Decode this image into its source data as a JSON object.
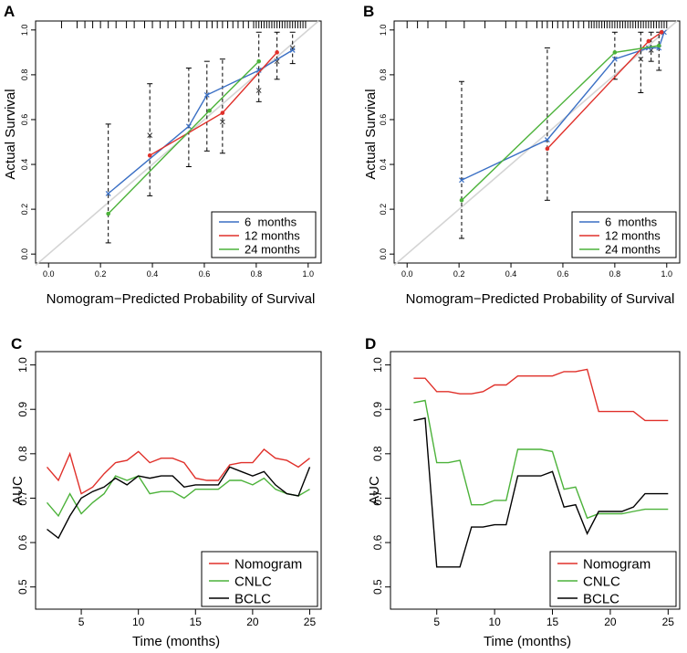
{
  "chart_data": [
    {
      "panel": "A",
      "type": "line",
      "subtype": "calibration",
      "xlabel": "Nomogram−Predicted Probability of Survival",
      "ylabel": "Actual Survival",
      "xlim": [
        -0.05,
        1.05
      ],
      "ylim": [
        -0.04,
        1.04
      ],
      "xticks": [
        "0.0",
        "0.2",
        "0.4",
        "0.6",
        "0.8",
        "1.0"
      ],
      "yticks": [
        "0.0",
        "0.2",
        "0.4",
        "0.6",
        "0.8",
        "1.0"
      ],
      "xtick_values": [
        0,
        0.2,
        0.4,
        0.6,
        0.8,
        1.0
      ],
      "ytick_values": [
        0,
        0.2,
        0.4,
        0.6,
        0.8,
        1.0
      ],
      "reference_line": true,
      "legend_position": "bottom-right",
      "rug": [
        0.05,
        0.11,
        0.14,
        0.17,
        0.2,
        0.23,
        0.26,
        0.3,
        0.33,
        0.37,
        0.4,
        0.43,
        0.46,
        0.49,
        0.52,
        0.55,
        0.58,
        0.61,
        0.63,
        0.65,
        0.67,
        0.69,
        0.71,
        0.73,
        0.75,
        0.77,
        0.79,
        0.8,
        0.81,
        0.82,
        0.83,
        0.84,
        0.85,
        0.86,
        0.87,
        0.88,
        0.89,
        0.9,
        0.91,
        0.92,
        0.93,
        0.94,
        0.95,
        0.96,
        0.97,
        0.98,
        0.99
      ],
      "series": [
        {
          "name": "6  months",
          "color": "#3a6fc4",
          "x": [
            0.23,
            0.54,
            0.61,
            0.81,
            0.94
          ],
          "y": [
            0.27,
            0.57,
            0.71,
            0.82,
            0.91
          ],
          "marker": "x"
        },
        {
          "name": "12 months",
          "color": "#e0302a",
          "x": [
            0.39,
            0.67,
            0.88
          ],
          "y": [
            0.44,
            0.63,
            0.9
          ],
          "marker": "dot"
        },
        {
          "name": "24 months",
          "color": "#4cb23a",
          "x": [
            0.23,
            0.62,
            0.81
          ],
          "y": [
            0.18,
            0.64,
            0.86
          ],
          "marker": "dot"
        }
      ],
      "error_bars": [
        {
          "x": 0.23,
          "lo": 0.05,
          "hi": 0.58
        },
        {
          "x": 0.39,
          "lo": 0.26,
          "hi": 0.76
        },
        {
          "x": 0.54,
          "lo": 0.39,
          "hi": 0.83
        },
        {
          "x": 0.61,
          "lo": 0.46,
          "hi": 0.86
        },
        {
          "x": 0.67,
          "lo": 0.45,
          "hi": 0.87
        },
        {
          "x": 0.81,
          "lo": 0.68,
          "hi": 0.99
        },
        {
          "x": 0.88,
          "lo": 0.78,
          "hi": 0.99
        },
        {
          "x": 0.94,
          "lo": 0.85,
          "hi": 0.99
        }
      ],
      "extra_points": [
        {
          "x": 0.39,
          "y": 0.53
        },
        {
          "x": 0.67,
          "y": 0.59
        },
        {
          "x": 0.81,
          "y": 0.73
        },
        {
          "x": 0.88,
          "y": 0.86
        },
        {
          "x": 0.94,
          "y": 0.92
        }
      ]
    },
    {
      "panel": "B",
      "type": "line",
      "subtype": "calibration",
      "xlabel": "Nomogram−Predicted Probability of Survival",
      "ylabel": "Actual Survival",
      "xlim": [
        -0.05,
        1.05
      ],
      "ylim": [
        -0.04,
        1.04
      ],
      "xticks": [
        "0.0",
        "0.2",
        "0.4",
        "0.6",
        "0.8",
        "1.0"
      ],
      "yticks": [
        "0.0",
        "0.2",
        "0.4",
        "0.6",
        "0.8",
        "1.0"
      ],
      "xtick_values": [
        0,
        0.2,
        0.4,
        0.6,
        0.8,
        1.0
      ],
      "ytick_values": [
        0,
        0.2,
        0.4,
        0.6,
        0.8,
        1.0
      ],
      "reference_line": true,
      "legend_position": "bottom-right",
      "rug": [
        0.0,
        0.04,
        0.08,
        0.15,
        0.22,
        0.3,
        0.38,
        0.42,
        0.46,
        0.5,
        0.52,
        0.54,
        0.56,
        0.58,
        0.6,
        0.62,
        0.64,
        0.66,
        0.68,
        0.7,
        0.71,
        0.72,
        0.73,
        0.74,
        0.75,
        0.76,
        0.77,
        0.78,
        0.79,
        0.8,
        0.81,
        0.82,
        0.83,
        0.84,
        0.85,
        0.86,
        0.87,
        0.88,
        0.89,
        0.9,
        0.91,
        0.92,
        0.93,
        0.94,
        0.95,
        0.96,
        0.97,
        0.98,
        0.99,
        1.0
      ],
      "series": [
        {
          "name": "6  months",
          "color": "#3a6fc4",
          "x": [
            0.21,
            0.54,
            0.8,
            0.93,
            0.97,
            0.99
          ],
          "y": [
            0.33,
            0.51,
            0.87,
            0.92,
            0.92,
            0.99
          ],
          "marker": "x"
        },
        {
          "name": "12 months",
          "color": "#e0302a",
          "x": [
            0.54,
            0.93,
            0.98
          ],
          "y": [
            0.47,
            0.95,
            0.99
          ],
          "marker": "dot"
        },
        {
          "name": "24 months",
          "color": "#4cb23a",
          "x": [
            0.21,
            0.8,
            0.97
          ],
          "y": [
            0.24,
            0.9,
            0.93
          ],
          "marker": "dot"
        }
      ],
      "error_bars": [
        {
          "x": 0.21,
          "lo": 0.07,
          "hi": 0.77
        },
        {
          "x": 0.54,
          "lo": 0.24,
          "hi": 0.92
        },
        {
          "x": 0.8,
          "lo": 0.78,
          "hi": 0.99
        },
        {
          "x": 0.9,
          "lo": 0.72,
          "hi": 0.99
        },
        {
          "x": 0.94,
          "lo": 0.86,
          "hi": 0.99
        },
        {
          "x": 0.97,
          "lo": 0.82,
          "hi": 0.99
        }
      ],
      "extra_points": [
        {
          "x": 0.9,
          "y": 0.87
        },
        {
          "x": 0.94,
          "y": 0.91
        }
      ]
    },
    {
      "panel": "C",
      "type": "line",
      "xlabel": "Time (months)",
      "ylabel": "AUC",
      "xlim": [
        1,
        26
      ],
      "ylim": [
        0.45,
        1.03
      ],
      "xticks": [
        "5",
        "10",
        "15",
        "20",
        "25"
      ],
      "yticks": [
        "0.5",
        "0.6",
        "0.7",
        "0.8",
        "0.9",
        "1.0"
      ],
      "xtick_values": [
        5,
        10,
        15,
        20,
        25
      ],
      "ytick_values": [
        0.5,
        0.6,
        0.7,
        0.8,
        0.9,
        1.0
      ],
      "legend_position": "bottom-right",
      "series": [
        {
          "name": "Nomogram",
          "color": "#e0302a",
          "x": [
            2,
            3,
            4,
            5,
            6,
            7,
            8,
            9,
            10,
            11,
            12,
            13,
            14,
            15,
            16,
            17,
            18,
            19,
            20,
            21,
            22,
            23,
            24,
            25
          ],
          "y": [
            0.77,
            0.74,
            0.8,
            0.71,
            0.725,
            0.755,
            0.78,
            0.785,
            0.805,
            0.78,
            0.79,
            0.79,
            0.78,
            0.745,
            0.74,
            0.74,
            0.775,
            0.78,
            0.78,
            0.81,
            0.79,
            0.785,
            0.77,
            0.79
          ]
        },
        {
          "name": "CNLC",
          "color": "#4cb23a",
          "x": [
            2,
            3,
            4,
            5,
            6,
            7,
            8,
            9,
            10,
            11,
            12,
            13,
            14,
            15,
            16,
            17,
            18,
            19,
            20,
            21,
            22,
            23,
            24,
            25
          ],
          "y": [
            0.69,
            0.66,
            0.71,
            0.665,
            0.69,
            0.71,
            0.75,
            0.74,
            0.75,
            0.71,
            0.715,
            0.715,
            0.7,
            0.72,
            0.72,
            0.72,
            0.74,
            0.74,
            0.73,
            0.745,
            0.72,
            0.71,
            0.705,
            0.72
          ]
        },
        {
          "name": "BCLC",
          "color": "#000000",
          "x": [
            2,
            3,
            4,
            5,
            6,
            7,
            8,
            9,
            10,
            11,
            12,
            13,
            14,
            15,
            16,
            17,
            18,
            19,
            20,
            21,
            22,
            23,
            24,
            25
          ],
          "y": [
            0.63,
            0.61,
            0.66,
            0.7,
            0.715,
            0.725,
            0.745,
            0.73,
            0.75,
            0.745,
            0.75,
            0.75,
            0.725,
            0.73,
            0.73,
            0.73,
            0.77,
            0.76,
            0.75,
            0.76,
            0.73,
            0.71,
            0.705,
            0.77
          ]
        }
      ]
    },
    {
      "panel": "D",
      "type": "line",
      "xlabel": "Time (months)",
      "ylabel": "AUC",
      "xlim": [
        1,
        26
      ],
      "ylim": [
        0.45,
        1.03
      ],
      "xticks": [
        "5",
        "10",
        "15",
        "20",
        "25"
      ],
      "yticks": [
        "0.5",
        "0.6",
        "0.7",
        "0.8",
        "0.9",
        "1.0"
      ],
      "xtick_values": [
        5,
        10,
        15,
        20,
        25
      ],
      "ytick_values": [
        0.5,
        0.6,
        0.7,
        0.8,
        0.9,
        1.0
      ],
      "legend_position": "bottom-right",
      "series": [
        {
          "name": "Nomogram",
          "color": "#e0302a",
          "x": [
            3,
            4,
            5,
            6,
            7,
            8,
            9,
            10,
            11,
            12,
            13,
            14,
            15,
            16,
            17,
            18,
            19,
            20,
            21,
            22,
            23,
            24,
            25
          ],
          "y": [
            0.97,
            0.97,
            0.94,
            0.94,
            0.935,
            0.935,
            0.94,
            0.955,
            0.955,
            0.975,
            0.975,
            0.975,
            0.975,
            0.985,
            0.985,
            0.99,
            0.895,
            0.895,
            0.895,
            0.895,
            0.875,
            0.875,
            0.875
          ]
        },
        {
          "name": "CNLC",
          "color": "#4cb23a",
          "x": [
            3,
            4,
            5,
            6,
            7,
            8,
            9,
            10,
            11,
            12,
            13,
            14,
            15,
            16,
            17,
            18,
            19,
            20,
            21,
            22,
            23,
            24,
            25
          ],
          "y": [
            0.915,
            0.92,
            0.78,
            0.78,
            0.785,
            0.685,
            0.685,
            0.695,
            0.695,
            0.81,
            0.81,
            0.81,
            0.805,
            0.72,
            0.725,
            0.655,
            0.665,
            0.665,
            0.665,
            0.67,
            0.675,
            0.675,
            0.675
          ]
        },
        {
          "name": "BCLC",
          "color": "#000000",
          "x": [
            3,
            4,
            5,
            6,
            7,
            8,
            9,
            10,
            11,
            12,
            13,
            14,
            15,
            16,
            17,
            18,
            19,
            20,
            21,
            22,
            23,
            24,
            25
          ],
          "y": [
            0.875,
            0.88,
            0.545,
            0.545,
            0.545,
            0.635,
            0.635,
            0.64,
            0.64,
            0.75,
            0.75,
            0.75,
            0.76,
            0.68,
            0.685,
            0.62,
            0.67,
            0.67,
            0.67,
            0.68,
            0.71,
            0.71,
            0.71
          ]
        }
      ]
    }
  ]
}
